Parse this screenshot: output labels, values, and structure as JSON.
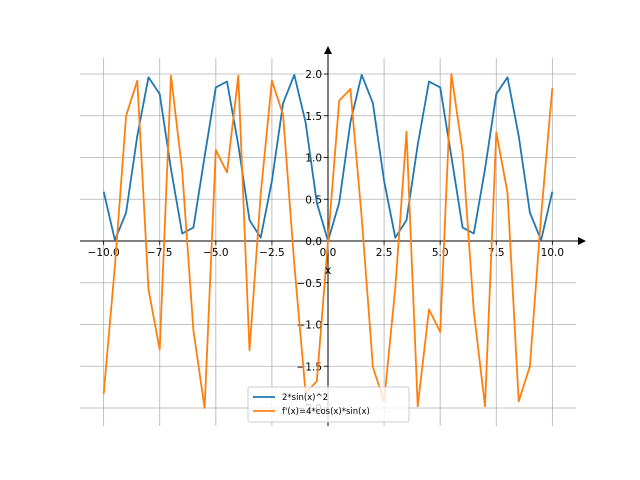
{
  "chart_data": {
    "type": "line",
    "title": "",
    "xlabel": "x",
    "ylabel": "",
    "xlim": [
      -10.0,
      10.0
    ],
    "ylim": [
      -2.0,
      2.0
    ],
    "grid": true,
    "legend_position": "bottom-center",
    "x_ticks": [
      -10.0,
      -7.5,
      -5.0,
      -2.5,
      0.0,
      2.5,
      5.0,
      7.5,
      10.0
    ],
    "x_tick_labels": [
      "−10.0",
      "−7.5",
      "−5.0",
      "−2.5",
      "0.0",
      "2.5",
      "5.0",
      "7.5",
      "10.0"
    ],
    "y_ticks": [
      -2.0,
      -1.5,
      -1.0,
      -0.5,
      0.0,
      0.5,
      1.0,
      1.5,
      2.0
    ],
    "y_tick_labels": [
      "−2.0",
      "−1.5",
      "−1.0",
      "−0.5",
      "0.0",
      "0.5",
      "1.0",
      "1.5",
      "2.0"
    ],
    "series": [
      {
        "name": "2*sin(x)^2",
        "color": "#1f77b4",
        "x": [
          -10.0,
          -9.5,
          -9.0,
          -8.5,
          -8.0,
          -7.5,
          -7.0,
          -6.5,
          -6.0,
          -5.5,
          -5.0,
          -4.5,
          -4.0,
          -3.5,
          -3.0,
          -2.5,
          -2.0,
          -1.5,
          -1.0,
          -0.5,
          0.0,
          0.5,
          1.0,
          1.5,
          2.0,
          2.5,
          3.0,
          3.5,
          4.0,
          4.5,
          5.0,
          5.5,
          6.0,
          6.5,
          7.0,
          7.5,
          8.0,
          8.5,
          9.0,
          9.5,
          10.0
        ],
        "values": [
          0.59,
          0.01,
          0.34,
          1.26,
          1.96,
          1.76,
          0.86,
          0.09,
          0.16,
          1.01,
          1.84,
          1.91,
          1.15,
          0.25,
          0.04,
          0.72,
          1.65,
          1.99,
          1.42,
          0.46,
          0.0,
          0.46,
          1.42,
          1.99,
          1.65,
          0.72,
          0.04,
          0.25,
          1.15,
          1.91,
          1.84,
          1.01,
          0.16,
          0.09,
          0.86,
          1.76,
          1.96,
          1.26,
          0.34,
          0.01,
          0.59
        ]
      },
      {
        "name": "f'(x)=4*cos(x)*sin(x)",
        "color": "#ff7f0e",
        "x": [
          -10.0,
          -9.5,
          -9.0,
          -8.5,
          -8.0,
          -7.5,
          -7.0,
          -6.5,
          -6.0,
          -5.5,
          -5.0,
          -4.5,
          -4.0,
          -3.5,
          -3.0,
          -2.5,
          -2.0,
          -1.5,
          -1.0,
          -0.5,
          0.0,
          0.5,
          1.0,
          1.5,
          2.0,
          2.5,
          3.0,
          3.5,
          4.0,
          4.5,
          5.0,
          5.5,
          6.0,
          6.5,
          7.0,
          7.5,
          8.0,
          8.5,
          9.0,
          9.5,
          10.0
        ],
        "values": [
          -1.83,
          -0.3,
          1.5,
          1.92,
          -0.58,
          -1.3,
          1.98,
          0.84,
          -1.07,
          -2.0,
          1.09,
          0.82,
          1.98,
          -1.31,
          0.56,
          1.92,
          1.51,
          -0.28,
          -1.82,
          -1.68,
          0.0,
          1.68,
          1.82,
          0.28,
          -1.51,
          -1.92,
          -0.56,
          1.31,
          -1.98,
          -0.82,
          -1.09,
          2.0,
          1.07,
          -0.84,
          -1.98,
          1.3,
          0.58,
          -1.92,
          -1.5,
          0.3,
          1.83
        ]
      }
    ]
  }
}
